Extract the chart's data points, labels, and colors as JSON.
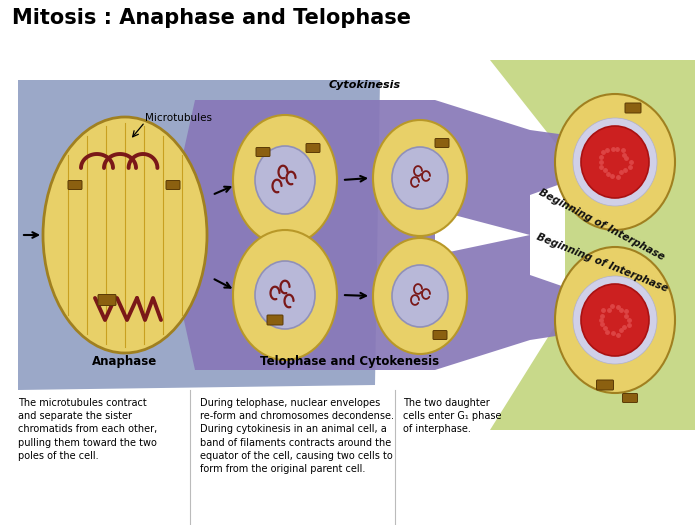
{
  "title": "Mitosis : Anaphase and Telophase",
  "title_fontsize": 15,
  "title_fontweight": "bold",
  "bg_color": "#ffffff",
  "blue_bg": "#9ba8c8",
  "green_bg": "#c8d98a",
  "purple_arrow": "#8878b8",
  "cell_fill": "#e8d068",
  "cell_outline": "#b89828",
  "cell_outline2": "#a08020",
  "nucleus_fill": "#b8b8d8",
  "nucleus_outline": "#9090b8",
  "chromosome_color": "#7a1818",
  "red_nucleus_fill": "#cc2020",
  "red_nucleus_light": "#dd4444",
  "organelle_fill": "#8b6010",
  "organelle_edge": "#5a3a05",
  "label_anaphase": "Anaphase",
  "label_telophase": "Telophase and Cytokenesis",
  "label_cytokinesis": "Cytokinesis",
  "label_interphase1": "Beginning of Interphase",
  "label_interphase2": "Beginning of Interphase",
  "label_microtubules": "Microtubules",
  "text1": "The microtubules contract\nand separate the sister\nchromatids from each other,\npulling them toward the two\npoles of the cell.",
  "text2": "During telophase, nuclear envelopes\nre-form and chromosomes decondense.\nDuring cytokinesis in an animal cell, a\nband of filaments contracts around the\nequator of the cell, causing two cells to\nform from the original parent cell.",
  "text3": "The two daughter\ncells enter G₁ phase\nof interphase.",
  "text_fontsize": 7,
  "label_fontsize": 8.5
}
